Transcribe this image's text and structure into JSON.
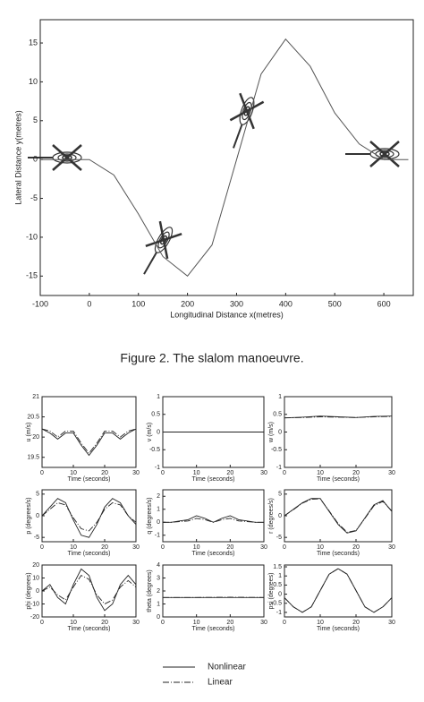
{
  "caption": "Figure 2. The slalom manoeuvre.",
  "legend": [
    {
      "name": "Nonlinear",
      "dash": "none"
    },
    {
      "name": "Linear",
      "dash": "7 2 1 2"
    }
  ],
  "chart_data": [
    {
      "type": "line",
      "xlabel": "Longitudinal Distance x(metres)",
      "ylabel": "Lateral Distance y(metres)",
      "color": "#555555",
      "x": [
        -100,
        -50,
        0,
        50,
        100,
        150,
        200,
        250,
        300,
        350,
        400,
        450,
        500,
        550,
        600,
        650
      ],
      "values": [
        0,
        0,
        0,
        -2,
        -7,
        -12.5,
        -15,
        -11,
        0,
        11,
        15.5,
        12,
        6,
        2,
        0,
        0
      ],
      "xlim": [
        -100,
        660
      ],
      "ylim": [
        -17.5,
        18
      ],
      "xticks": [
        -100,
        0,
        100,
        200,
        300,
        400,
        500,
        600
      ],
      "yticks": [
        -15,
        -10,
        -5,
        0,
        5,
        10,
        15
      ]
    },
    {
      "type": "line",
      "xlabel": "Time (seconds)",
      "ylabel": "u (m/s)",
      "color": "#222222",
      "x": [
        0,
        2.5,
        5,
        7.5,
        10,
        12.5,
        15,
        17.5,
        20,
        22.5,
        25,
        27.5,
        30
      ],
      "series": [
        {
          "values": [
            20.2,
            20.1,
            19.95,
            20.1,
            20.1,
            19.8,
            19.55,
            19.8,
            20.1,
            20.1,
            19.95,
            20.1,
            20.2
          ]
        },
        {
          "values": [
            20.2,
            20.15,
            20.0,
            20.15,
            20.15,
            19.85,
            19.6,
            19.85,
            20.15,
            20.15,
            20.0,
            20.15,
            20.2
          ]
        }
      ],
      "xlim": [
        0,
        30
      ],
      "ylim": [
        19.25,
        21
      ],
      "xticks": [
        0,
        10,
        20,
        30
      ],
      "yticks": [
        19.5,
        20,
        20.5,
        21
      ]
    },
    {
      "type": "line",
      "xlabel": "Time (seconds)",
      "ylabel": "v (m/s)",
      "color": "#222222",
      "x": [
        0,
        30
      ],
      "series": [
        {
          "values": [
            0,
            0
          ]
        },
        {
          "values": [
            0,
            0
          ]
        }
      ],
      "xlim": [
        0,
        30
      ],
      "ylim": [
        -1,
        1
      ],
      "xticks": [
        0,
        10,
        20,
        30
      ],
      "yticks": [
        -1,
        -0.5,
        0,
        0.5,
        1
      ]
    },
    {
      "type": "line",
      "xlabel": "Time (seconds)",
      "ylabel": "w (m/s)",
      "color": "#222222",
      "x": [
        0,
        5,
        10,
        15,
        20,
        25,
        30
      ],
      "series": [
        {
          "values": [
            0.4,
            0.42,
            0.45,
            0.43,
            0.41,
            0.44,
            0.45
          ]
        },
        {
          "values": [
            0.4,
            0.41,
            0.43,
            0.42,
            0.41,
            0.43,
            0.44
          ]
        }
      ],
      "xlim": [
        0,
        30
      ],
      "ylim": [
        -1,
        1
      ],
      "xticks": [
        0,
        10,
        20,
        30
      ],
      "yticks": [
        -1,
        -0.5,
        0,
        0.5,
        1
      ]
    },
    {
      "type": "line",
      "xlabel": "Time (seconds)",
      "ylabel": "p (degrees/s)",
      "color": "#222222",
      "x": [
        0,
        2.5,
        5,
        7.5,
        10,
        12.5,
        15,
        17.5,
        20,
        22.5,
        25,
        27.5,
        30
      ],
      "series": [
        {
          "values": [
            0,
            2,
            4,
            3,
            -1,
            -4.5,
            -5,
            -2,
            2,
            4,
            3,
            0,
            -2
          ]
        },
        {
          "values": [
            0,
            1.5,
            3,
            2.5,
            -0.5,
            -3,
            -3.5,
            -1.5,
            1.5,
            3,
            2.5,
            0,
            -1.5
          ]
        }
      ],
      "xlim": [
        0,
        30
      ],
      "ylim": [
        -6,
        6
      ],
      "xticks": [
        0,
        10,
        20,
        30
      ],
      "yticks": [
        -5,
        0,
        5
      ]
    },
    {
      "type": "line",
      "xlabel": "Time (seconds)",
      "ylabel": "q (degrees/s)",
      "color": "#222222",
      "x": [
        0,
        2.5,
        5,
        7.5,
        10,
        12.5,
        15,
        17.5,
        20,
        22.5,
        25,
        27.5,
        30
      ],
      "series": [
        {
          "values": [
            0,
            0,
            0.1,
            0.2,
            0.5,
            0.3,
            0,
            0.3,
            0.5,
            0.2,
            0.1,
            0,
            0
          ]
        },
        {
          "values": [
            0,
            0,
            0.05,
            0.1,
            0.3,
            0.2,
            0,
            0.2,
            0.3,
            0.1,
            0.05,
            0,
            0
          ]
        }
      ],
      "xlim": [
        0,
        30
      ],
      "ylim": [
        -1.5,
        2.5
      ],
      "xticks": [
        0,
        10,
        20,
        30
      ],
      "yticks": [
        -1,
        0,
        1,
        2
      ]
    },
    {
      "type": "line",
      "xlabel": "Time (seconds)",
      "ylabel": "r (degrees/s)",
      "color": "#222222",
      "x": [
        0,
        2.5,
        5,
        7.5,
        10,
        12.5,
        15,
        17.5,
        20,
        22.5,
        25,
        27.5,
        30
      ],
      "series": [
        {
          "values": [
            0,
            1.5,
            3,
            4,
            4,
            1,
            -2,
            -4,
            -3.5,
            -0.5,
            2.5,
            3.5,
            1
          ]
        },
        {
          "values": [
            0,
            1.4,
            2.9,
            3.8,
            3.9,
            1.1,
            -1.8,
            -3.8,
            -3.4,
            -0.6,
            2.3,
            3.3,
            1.1
          ]
        }
      ],
      "xlim": [
        0,
        30
      ],
      "ylim": [
        -6,
        6
      ],
      "xticks": [
        0,
        10,
        20,
        30
      ],
      "yticks": [
        -5,
        0,
        5
      ]
    },
    {
      "type": "line",
      "xlabel": "Time (seconds)",
      "ylabel": "phi (degrees)",
      "color": "#222222",
      "x": [
        0,
        2.5,
        5,
        7.5,
        10,
        12.5,
        15,
        17.5,
        20,
        22.5,
        25,
        27.5,
        30
      ],
      "series": [
        {
          "values": [
            0,
            5,
            -5,
            -10,
            5,
            17,
            12,
            -5,
            -15,
            -10,
            5,
            12,
            5
          ]
        },
        {
          "values": [
            0,
            3,
            -3,
            -7,
            3,
            12,
            9,
            -3,
            -10,
            -7,
            3,
            8,
            3
          ]
        }
      ],
      "xlim": [
        0,
        30
      ],
      "ylim": [
        -20,
        20
      ],
      "xticks": [
        0,
        10,
        20,
        30
      ],
      "yticks": [
        -20,
        -10,
        0,
        10,
        20
      ]
    },
    {
      "type": "line",
      "xlabel": "Time (seconds)",
      "ylabel": "theta (degrees)",
      "color": "#222222",
      "x": [
        0,
        10,
        20,
        30
      ],
      "series": [
        {
          "values": [
            1.5,
            1.5,
            1.5,
            1.5
          ]
        },
        {
          "values": [
            1.5,
            1.5,
            1.52,
            1.5
          ]
        }
      ],
      "xlim": [
        0,
        30
      ],
      "ylim": [
        0,
        4
      ],
      "xticks": [
        0,
        10,
        20,
        30
      ],
      "yticks": [
        0,
        1,
        2,
        3,
        4
      ]
    },
    {
      "type": "line",
      "xlabel": "Time (seconds)",
      "ylabel": "psi (degrees)",
      "color": "#222222",
      "x": [
        0,
        2.5,
        5,
        7.5,
        10,
        12.5,
        15,
        17.5,
        20,
        22.5,
        25,
        27.5,
        30
      ],
      "series": [
        {
          "values": [
            -0.2,
            -0.7,
            -1.0,
            -0.7,
            0.2,
            1.1,
            1.4,
            1.1,
            0.2,
            -0.7,
            -1.0,
            -0.7,
            -0.2
          ]
        },
        {
          "values": [
            -0.2,
            -0.7,
            -1.0,
            -0.7,
            0.2,
            1.1,
            1.4,
            1.1,
            0.2,
            -0.7,
            -1.0,
            -0.7,
            -0.2
          ]
        }
      ],
      "xlim": [
        0,
        30
      ],
      "ylim": [
        -1.25,
        1.6
      ],
      "xticks": [
        0,
        10,
        20,
        30
      ],
      "yticks": [
        -1,
        -0.5,
        0,
        0.5,
        1,
        1.5
      ]
    }
  ]
}
